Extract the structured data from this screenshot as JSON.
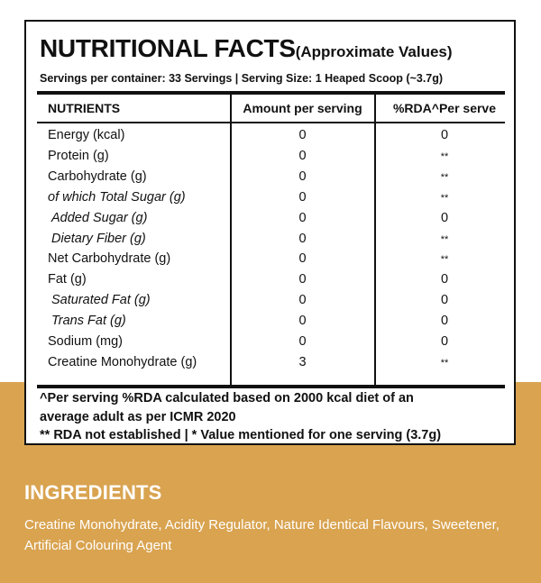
{
  "panel": {
    "title": "NUTRITIONAL FACTS",
    "subtitle": "(Approximate Values)",
    "servings": "Servings per container: 33 Servings | Serving Size: 1 Heaped Scoop (~3.7g)",
    "headers": {
      "nutrients": "NUTRIENTS",
      "amount": "Amount per serving",
      "rda": "%RDA^Per serve"
    },
    "rows": [
      {
        "name": "Energy (kcal)",
        "amount": "0",
        "rda": "0"
      },
      {
        "name": "Protein (g)",
        "amount": "0",
        "rda": "**"
      },
      {
        "name": "Carbohydrate (g)",
        "amount": "0",
        "rda": "**"
      },
      {
        "name": "of which Total Sugar (g)",
        "amount": "0",
        "rda": "**"
      },
      {
        "name": "Added Sugar (g)",
        "amount": "0",
        "rda": "0"
      },
      {
        "name": "Dietary Fiber (g)",
        "amount": "0",
        "rda": "**"
      },
      {
        "name": "Net Carbohydrate (g)",
        "amount": "0",
        "rda": "**"
      },
      {
        "name": "Fat (g)",
        "amount": "0",
        "rda": "0"
      },
      {
        "name": "Saturated Fat (g)",
        "amount": "0",
        "rda": "0"
      },
      {
        "name": "Trans Fat (g)",
        "amount": "0",
        "rda": "0"
      },
      {
        "name": "Sodium (mg)",
        "amount": "0",
        "rda": "0"
      },
      {
        "name": "Creatine Monohydrate (g)",
        "amount": "3",
        "rda": "**"
      }
    ],
    "footnote_line1": "^Per serving %RDA calculated based on 2000 kcal diet of an",
    "footnote_line2": "average adult as per ICMR 2020",
    "footnote_line3": "** RDA not established | * Value mentioned for one serving (3.7g)"
  },
  "ingredients": {
    "title": "INGREDIENTS",
    "text": "Creatine Monohydrate, Acidity Regulator, Nature Identical Flavours, Sweetener, Artificial Colouring Agent"
  },
  "colors": {
    "band": "#d9a350",
    "text": "#111111",
    "ingredients_text": "#ffffff"
  }
}
